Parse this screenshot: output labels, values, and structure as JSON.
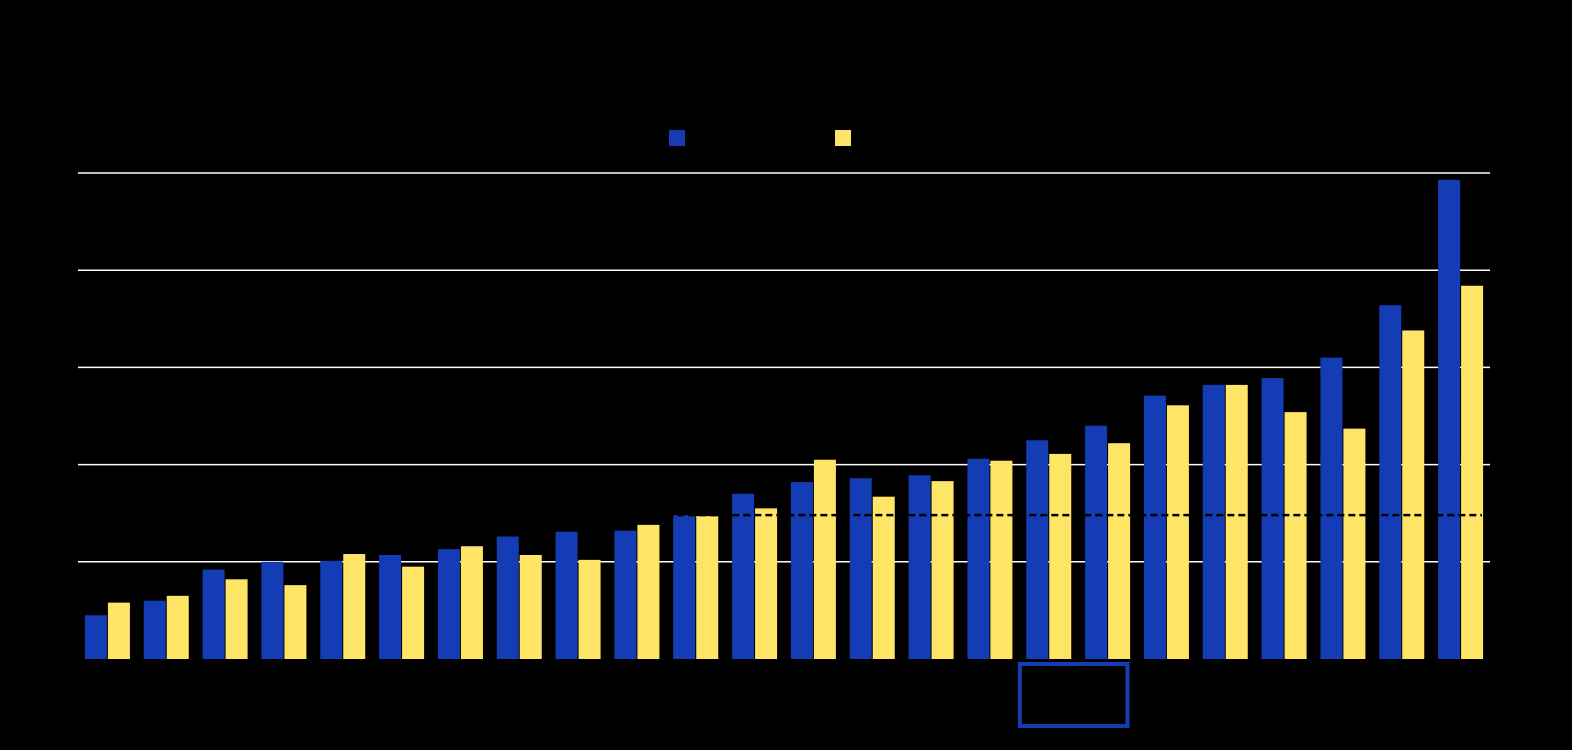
{
  "chart_data": {
    "type": "bar",
    "categories": [
      null,
      null,
      null,
      null,
      null,
      null,
      null,
      null,
      null,
      null,
      null,
      null,
      null,
      null,
      null,
      null,
      null,
      null,
      null,
      null,
      null,
      null,
      null,
      null
    ],
    "series": [
      {
        "color": "#143cb4",
        "values": [
          0.45,
          0.6,
          0.92,
          1.0,
          1.01,
          1.07,
          1.13,
          1.26,
          1.31,
          1.32,
          1.48,
          1.7,
          1.82,
          1.86,
          1.89,
          2.06,
          2.25,
          2.4,
          2.71,
          2.82,
          2.89,
          3.1,
          3.64,
          4.93
        ]
      },
      {
        "color": "#ffe566",
        "values": [
          0.58,
          0.65,
          0.82,
          0.76,
          1.08,
          0.95,
          1.16,
          1.07,
          1.02,
          1.38,
          1.47,
          1.55,
          2.05,
          1.67,
          1.83,
          2.04,
          2.11,
          2.22,
          2.61,
          2.82,
          2.54,
          2.37,
          3.38,
          3.84
        ]
      }
    ],
    "ylim": [
      0,
      5
    ],
    "yticks": [
      1,
      2,
      3,
      4,
      5
    ],
    "grid": true,
    "reference_line": 1.48,
    "highlight_categories": [
      16,
      17
    ]
  }
}
